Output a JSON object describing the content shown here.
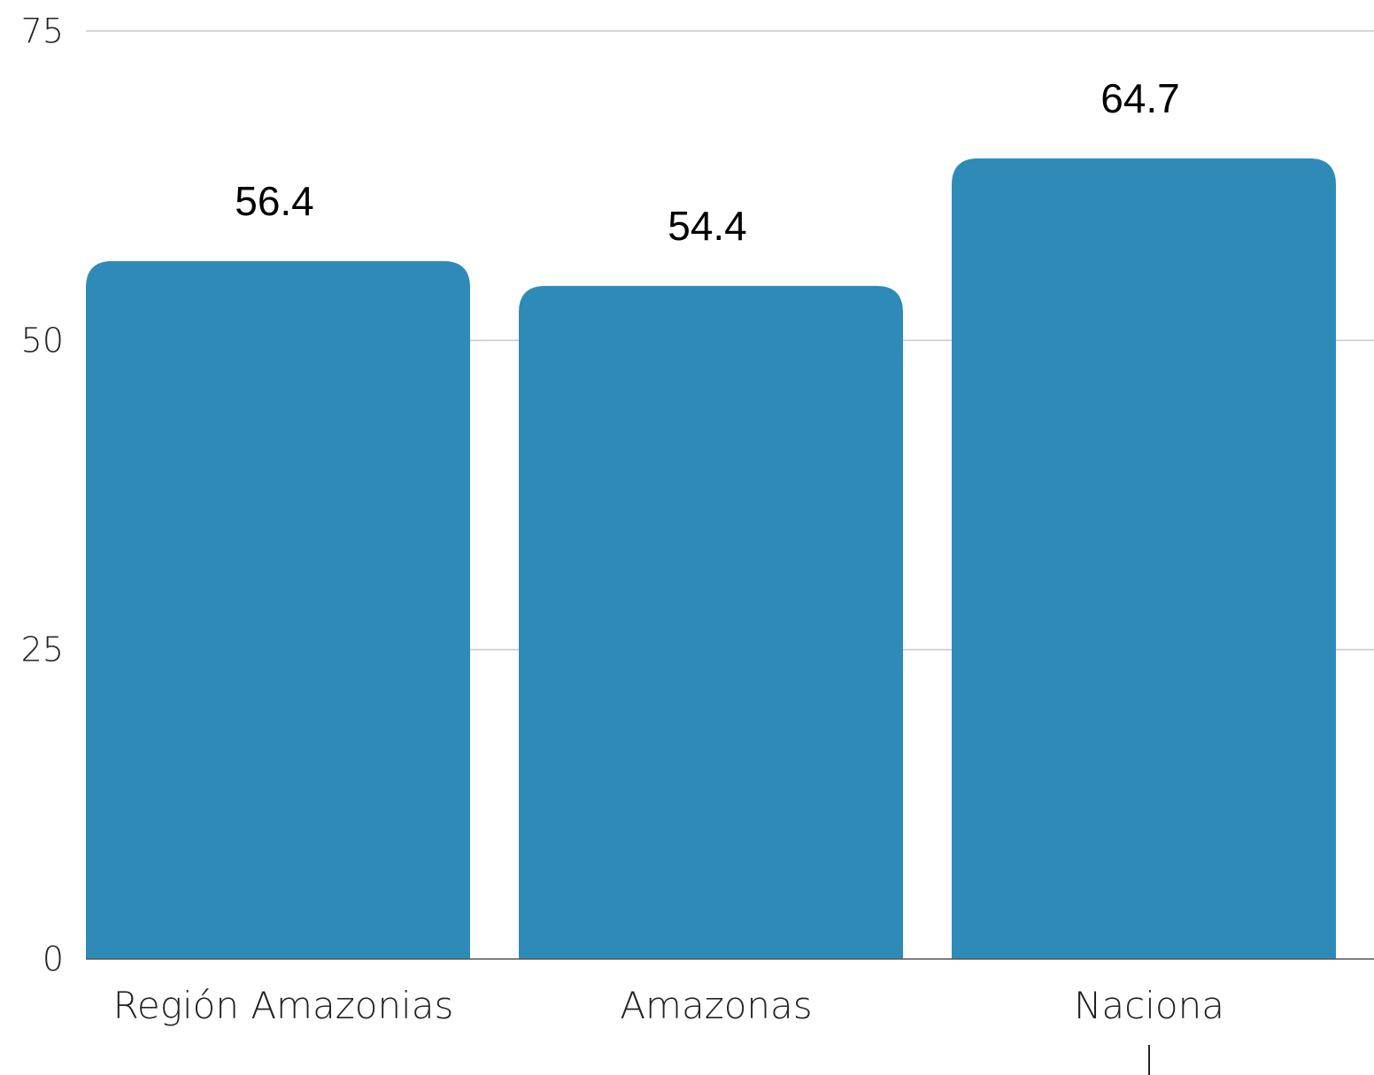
{
  "chart_data": {
    "type": "bar",
    "categories": [
      "Región Amazonias",
      "Amazonas",
      "Naciona\n|"
    ],
    "values": [
      56.4,
      54.4,
      64.7
    ],
    "data_labels": [
      "56.4",
      "54.4",
      "64.7"
    ],
    "y_ticks": [
      0,
      25,
      50,
      75
    ],
    "ylim": [
      0,
      75
    ],
    "grid": true,
    "legend": "none",
    "bar_color": "#2E8BB8"
  }
}
